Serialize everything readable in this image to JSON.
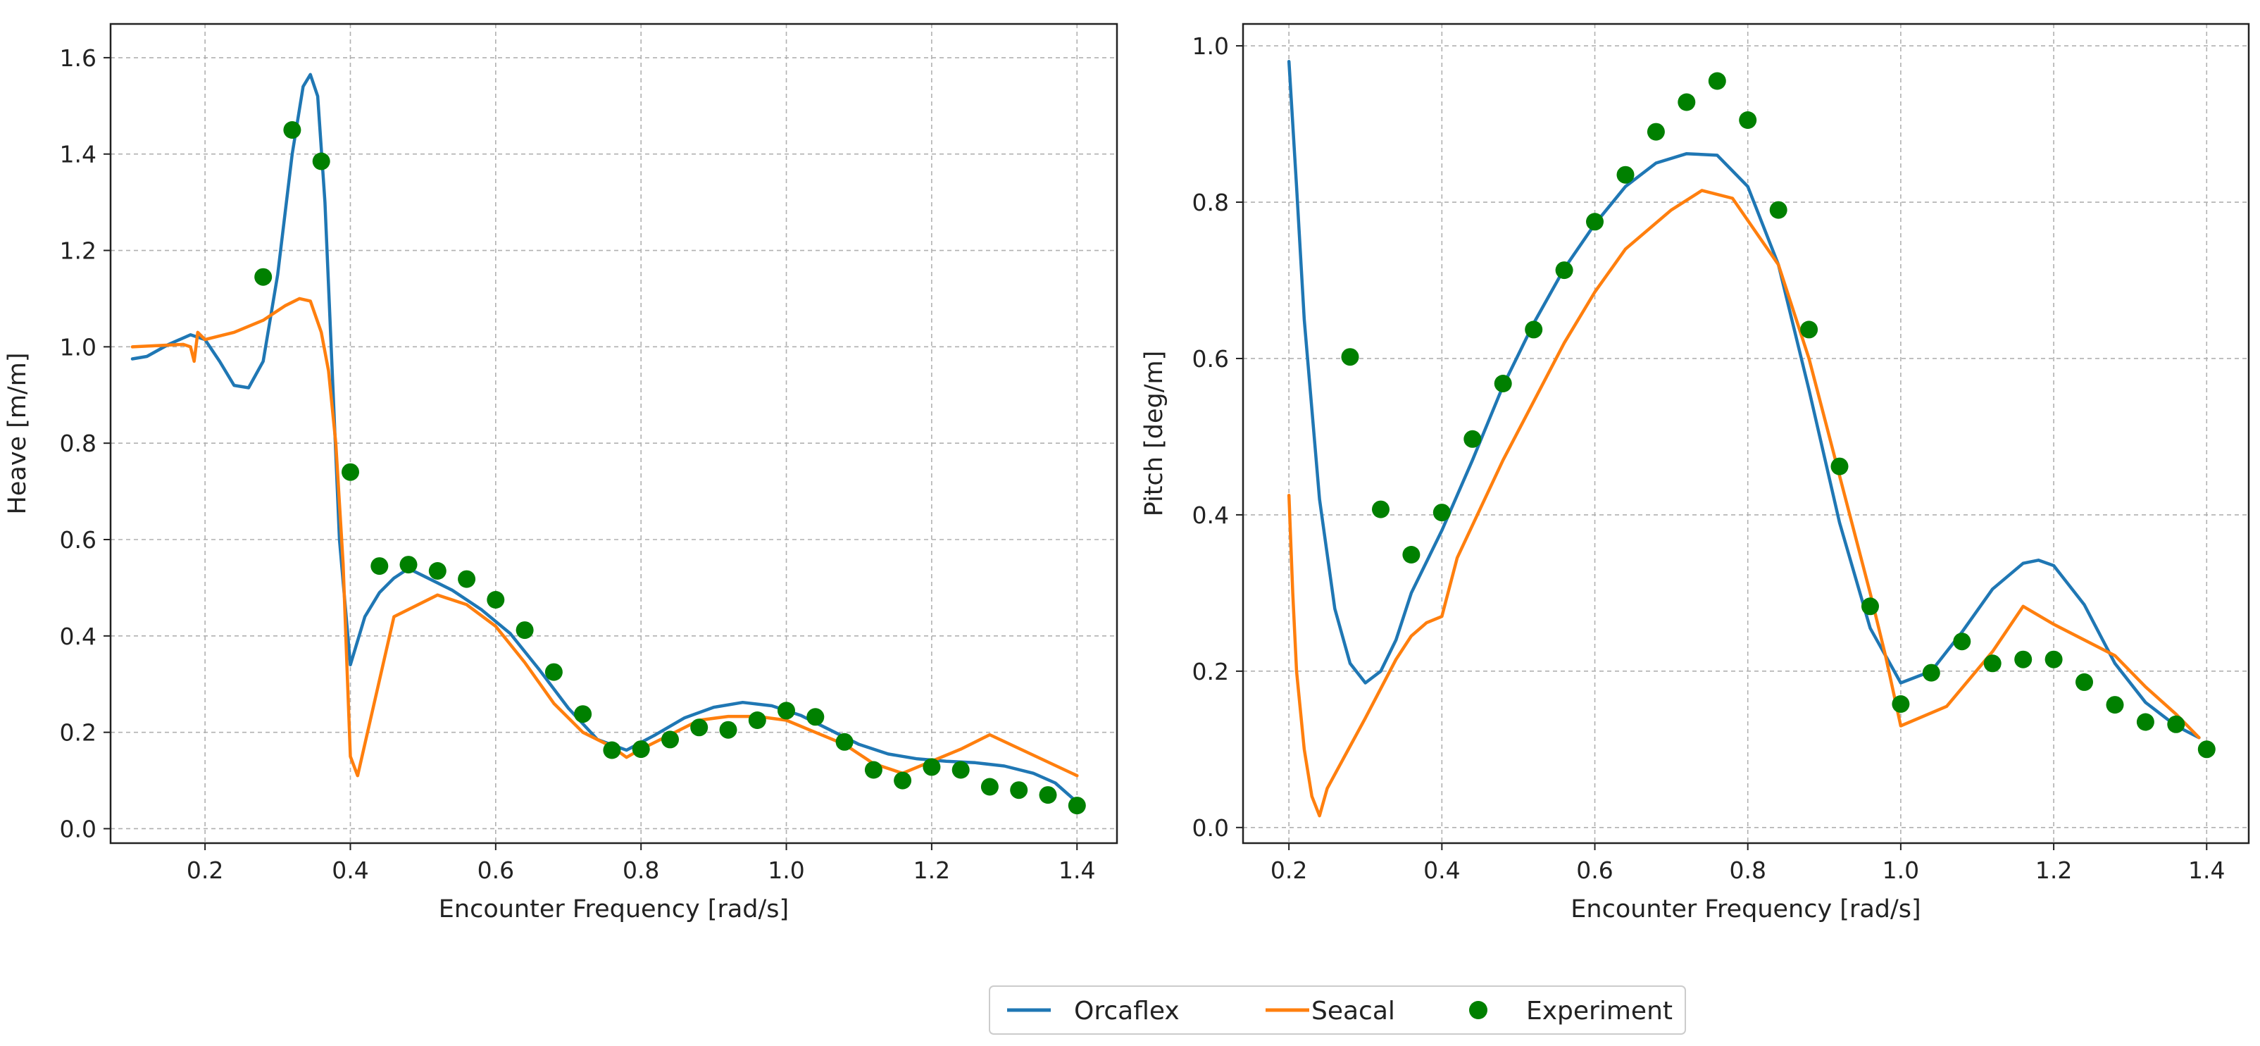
{
  "chart_data": [
    {
      "type": "line",
      "xlabel": "Encounter Frequency [rad/s]",
      "ylabel": "Heave [m/m]",
      "xlim": [
        0.07,
        1.455
      ],
      "ylim": [
        -0.03,
        1.67
      ],
      "xticks": [
        0.2,
        0.4,
        0.6,
        0.8,
        1.0,
        1.2,
        1.4
      ],
      "xtick_labels": [
        "0.2",
        "0.4",
        "0.6",
        "0.8",
        "1.0",
        "1.2",
        "1.4"
      ],
      "yticks": [
        0.0,
        0.2,
        0.4,
        0.6,
        0.8,
        1.0,
        1.2,
        1.4,
        1.6
      ],
      "ytick_labels": [
        "0.0",
        "0.2",
        "0.4",
        "0.6",
        "0.8",
        "1.0",
        "1.2",
        "1.4",
        "1.6"
      ],
      "grid": true,
      "series": [
        {
          "name": "Orcaflex",
          "kind": "line",
          "color": "#1f77b4",
          "points": [
            [
              0.1,
              0.975
            ],
            [
              0.12,
              0.98
            ],
            [
              0.15,
              1.005
            ],
            [
              0.18,
              1.025
            ],
            [
              0.2,
              1.015
            ],
            [
              0.22,
              0.97
            ],
            [
              0.24,
              0.92
            ],
            [
              0.26,
              0.915
            ],
            [
              0.28,
              0.97
            ],
            [
              0.3,
              1.15
            ],
            [
              0.32,
              1.4
            ],
            [
              0.335,
              1.54
            ],
            [
              0.345,
              1.565
            ],
            [
              0.355,
              1.52
            ],
            [
              0.365,
              1.3
            ],
            [
              0.375,
              0.95
            ],
            [
              0.385,
              0.6
            ],
            [
              0.4,
              0.34
            ],
            [
              0.42,
              0.44
            ],
            [
              0.44,
              0.49
            ],
            [
              0.46,
              0.52
            ],
            [
              0.48,
              0.54
            ],
            [
              0.5,
              0.525
            ],
            [
              0.54,
              0.495
            ],
            [
              0.58,
              0.455
            ],
            [
              0.62,
              0.405
            ],
            [
              0.66,
              0.33
            ],
            [
              0.7,
              0.25
            ],
            [
              0.74,
              0.185
            ],
            [
              0.78,
              0.163
            ],
            [
              0.82,
              0.195
            ],
            [
              0.86,
              0.23
            ],
            [
              0.9,
              0.252
            ],
            [
              0.94,
              0.262
            ],
            [
              0.98,
              0.255
            ],
            [
              1.02,
              0.235
            ],
            [
              1.06,
              0.205
            ],
            [
              1.1,
              0.175
            ],
            [
              1.14,
              0.155
            ],
            [
              1.18,
              0.145
            ],
            [
              1.22,
              0.14
            ],
            [
              1.26,
              0.137
            ],
            [
              1.3,
              0.13
            ],
            [
              1.34,
              0.115
            ],
            [
              1.37,
              0.095
            ],
            [
              1.4,
              0.055
            ]
          ]
        },
        {
          "name": "Seacal",
          "kind": "line",
          "color": "#ff7f0e",
          "points": [
            [
              0.1,
              1.0
            ],
            [
              0.17,
              1.005
            ],
            [
              0.18,
              1.0
            ],
            [
              0.185,
              0.97
            ],
            [
              0.19,
              1.03
            ],
            [
              0.2,
              1.015
            ],
            [
              0.24,
              1.03
            ],
            [
              0.28,
              1.055
            ],
            [
              0.31,
              1.085
            ],
            [
              0.33,
              1.1
            ],
            [
              0.345,
              1.095
            ],
            [
              0.36,
              1.03
            ],
            [
              0.37,
              0.95
            ],
            [
              0.38,
              0.8
            ],
            [
              0.39,
              0.55
            ],
            [
              0.395,
              0.35
            ],
            [
              0.4,
              0.15
            ],
            [
              0.41,
              0.11
            ],
            [
              0.46,
              0.44
            ],
            [
              0.52,
              0.485
            ],
            [
              0.56,
              0.465
            ],
            [
              0.6,
              0.42
            ],
            [
              0.64,
              0.345
            ],
            [
              0.68,
              0.26
            ],
            [
              0.72,
              0.2
            ],
            [
              0.76,
              0.17
            ],
            [
              0.78,
              0.148
            ],
            [
              0.8,
              0.165
            ],
            [
              0.84,
              0.195
            ],
            [
              0.88,
              0.225
            ],
            [
              0.92,
              0.233
            ],
            [
              0.96,
              0.233
            ],
            [
              1.0,
              0.225
            ],
            [
              1.04,
              0.2
            ],
            [
              1.08,
              0.175
            ],
            [
              1.12,
              0.135
            ],
            [
              1.16,
              0.115
            ],
            [
              1.2,
              0.14
            ],
            [
              1.24,
              0.165
            ],
            [
              1.28,
              0.195
            ],
            [
              1.4,
              0.11
            ]
          ]
        },
        {
          "name": "Experiment",
          "kind": "scatter",
          "color": "#008000",
          "points": [
            [
              0.28,
              1.145
            ],
            [
              0.32,
              1.45
            ],
            [
              0.36,
              1.385
            ],
            [
              0.4,
              0.74
            ],
            [
              0.44,
              0.545
            ],
            [
              0.48,
              0.548
            ],
            [
              0.52,
              0.535
            ],
            [
              0.56,
              0.518
            ],
            [
              0.6,
              0.475
            ],
            [
              0.64,
              0.412
            ],
            [
              0.68,
              0.325
            ],
            [
              0.72,
              0.238
            ],
            [
              0.76,
              0.163
            ],
            [
              0.8,
              0.165
            ],
            [
              0.84,
              0.185
            ],
            [
              0.88,
              0.21
            ],
            [
              0.92,
              0.205
            ],
            [
              0.96,
              0.225
            ],
            [
              1.0,
              0.245
            ],
            [
              1.04,
              0.232
            ],
            [
              1.08,
              0.18
            ],
            [
              1.12,
              0.122
            ],
            [
              1.16,
              0.1
            ],
            [
              1.2,
              0.128
            ],
            [
              1.24,
              0.122
            ],
            [
              1.28,
              0.087
            ],
            [
              1.32,
              0.08
            ],
            [
              1.36,
              0.07
            ],
            [
              1.4,
              0.048
            ]
          ]
        }
      ]
    },
    {
      "type": "line",
      "xlabel": "Encounter Frequency [rad/s]",
      "ylabel": "Pitch [deg/m]",
      "xlim": [
        0.14,
        1.455
      ],
      "ylim": [
        -0.02,
        1.028
      ],
      "xticks": [
        0.2,
        0.4,
        0.6,
        0.8,
        1.0,
        1.2,
        1.4
      ],
      "xtick_labels": [
        "0.2",
        "0.4",
        "0.6",
        "0.8",
        "1.0",
        "1.2",
        "1.4"
      ],
      "yticks": [
        0.0,
        0.2,
        0.4,
        0.6,
        0.8,
        1.0
      ],
      "ytick_labels": [
        "0.0",
        "0.2",
        "0.4",
        "0.6",
        "0.8",
        "1.0"
      ],
      "grid": true,
      "series": [
        {
          "name": "Orcaflex",
          "kind": "line",
          "color": "#1f77b4",
          "points": [
            [
              0.2,
              0.98
            ],
            [
              0.21,
              0.82
            ],
            [
              0.22,
              0.65
            ],
            [
              0.24,
              0.42
            ],
            [
              0.26,
              0.28
            ],
            [
              0.28,
              0.21
            ],
            [
              0.3,
              0.185
            ],
            [
              0.32,
              0.2
            ],
            [
              0.34,
              0.24
            ],
            [
              0.36,
              0.3
            ],
            [
              0.4,
              0.38
            ],
            [
              0.44,
              0.47
            ],
            [
              0.48,
              0.565
            ],
            [
              0.52,
              0.645
            ],
            [
              0.56,
              0.715
            ],
            [
              0.6,
              0.772
            ],
            [
              0.64,
              0.82
            ],
            [
              0.68,
              0.85
            ],
            [
              0.72,
              0.862
            ],
            [
              0.76,
              0.86
            ],
            [
              0.8,
              0.82
            ],
            [
              0.84,
              0.72
            ],
            [
              0.88,
              0.56
            ],
            [
              0.92,
              0.39
            ],
            [
              0.96,
              0.255
            ],
            [
              1.0,
              0.185
            ],
            [
              1.04,
              0.2
            ],
            [
              1.08,
              0.25
            ],
            [
              1.12,
              0.305
            ],
            [
              1.16,
              0.338
            ],
            [
              1.18,
              0.342
            ],
            [
              1.2,
              0.335
            ],
            [
              1.24,
              0.285
            ],
            [
              1.28,
              0.21
            ],
            [
              1.32,
              0.16
            ],
            [
              1.36,
              0.13
            ],
            [
              1.39,
              0.115
            ]
          ]
        },
        {
          "name": "Seacal",
          "kind": "line",
          "color": "#ff7f0e",
          "points": [
            [
              0.2,
              0.425
            ],
            [
              0.205,
              0.3
            ],
            [
              0.21,
              0.2
            ],
            [
              0.22,
              0.1
            ],
            [
              0.23,
              0.04
            ],
            [
              0.24,
              0.015
            ],
            [
              0.25,
              0.05
            ],
            [
              0.3,
              0.14
            ],
            [
              0.34,
              0.215
            ],
            [
              0.36,
              0.245
            ],
            [
              0.38,
              0.262
            ],
            [
              0.4,
              0.27
            ],
            [
              0.42,
              0.345
            ],
            [
              0.48,
              0.47
            ],
            [
              0.56,
              0.62
            ],
            [
              0.6,
              0.685
            ],
            [
              0.64,
              0.74
            ],
            [
              0.7,
              0.79
            ],
            [
              0.74,
              0.815
            ],
            [
              0.78,
              0.805
            ],
            [
              0.84,
              0.72
            ],
            [
              0.88,
              0.6
            ],
            [
              0.92,
              0.45
            ],
            [
              0.96,
              0.3
            ],
            [
              0.98,
              0.22
            ],
            [
              1.0,
              0.13
            ],
            [
              1.06,
              0.155
            ],
            [
              1.12,
              0.225
            ],
            [
              1.16,
              0.283
            ],
            [
              1.2,
              0.26
            ],
            [
              1.28,
              0.22
            ],
            [
              1.32,
              0.18
            ],
            [
              1.36,
              0.145
            ],
            [
              1.39,
              0.115
            ]
          ]
        },
        {
          "name": "Experiment",
          "kind": "scatter",
          "color": "#008000",
          "points": [
            [
              0.28,
              0.602
            ],
            [
              0.32,
              0.407
            ],
            [
              0.36,
              0.349
            ],
            [
              0.4,
              0.403
            ],
            [
              0.44,
              0.497
            ],
            [
              0.48,
              0.568
            ],
            [
              0.52,
              0.637
            ],
            [
              0.56,
              0.713
            ],
            [
              0.6,
              0.775
            ],
            [
              0.64,
              0.835
            ],
            [
              0.68,
              0.89
            ],
            [
              0.72,
              0.928
            ],
            [
              0.76,
              0.955
            ],
            [
              0.8,
              0.905
            ],
            [
              0.84,
              0.79
            ],
            [
              0.88,
              0.637
            ],
            [
              0.92,
              0.462
            ],
            [
              0.96,
              0.283
            ],
            [
              1.0,
              0.158
            ],
            [
              1.04,
              0.198
            ],
            [
              1.08,
              0.238
            ],
            [
              1.12,
              0.21
            ],
            [
              1.16,
              0.215
            ],
            [
              1.2,
              0.215
            ],
            [
              1.24,
              0.186
            ],
            [
              1.28,
              0.157
            ],
            [
              1.32,
              0.135
            ],
            [
              1.36,
              0.132
            ],
            [
              1.4,
              0.1
            ]
          ]
        }
      ]
    }
  ],
  "legend": {
    "placement": "bottom-center",
    "entries": [
      {
        "label": "Orcaflex",
        "color": "#1f77b4",
        "kind": "line"
      },
      {
        "label": "Seacal",
        "color": "#ff7f0e",
        "kind": "line"
      },
      {
        "label": "Experiment",
        "color": "#008000",
        "kind": "marker"
      }
    ]
  }
}
